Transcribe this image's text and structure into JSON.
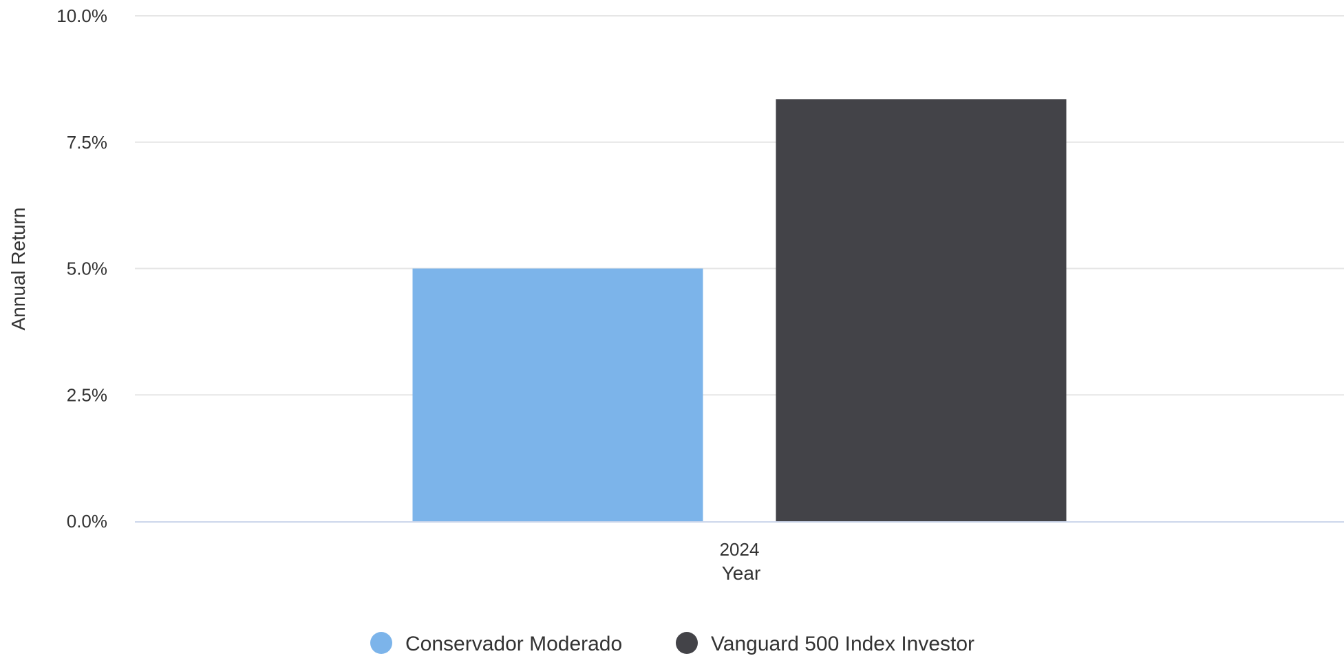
{
  "chart_data": {
    "type": "bar",
    "title": "",
    "xlabel": "Year",
    "ylabel": "Annual Return",
    "categories": [
      "2024"
    ],
    "series": [
      {
        "name": "Conservador Moderado",
        "values": [
          5.0
        ],
        "color": "#7cb4ea"
      },
      {
        "name": "Vanguard 500 Index Investor",
        "values": [
          8.35
        ],
        "color": "#434348"
      }
    ],
    "ylim": [
      0,
      10
    ],
    "yticks": [
      0,
      2.5,
      5,
      7.5,
      10
    ],
    "ytick_labels": [
      "0.0%",
      "2.5%",
      "5.0%",
      "7.5%",
      "10.0%"
    ],
    "grid": true,
    "legend_position": "bottom-center",
    "colors": {
      "grid": "#e6e6e6",
      "baseline": "#ccd6eb",
      "text": "#333333"
    }
  }
}
